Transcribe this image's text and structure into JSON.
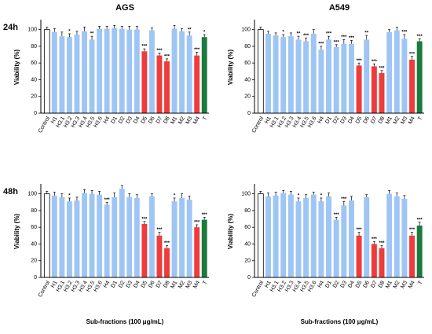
{
  "chart_data": [
    {
      "type": "bar",
      "title": "AGS",
      "panel_label": "24h",
      "ylabel": "Viability (%)",
      "categories": [
        "Control",
        "H1",
        "H3.1",
        "H3.2",
        "H3.3",
        "H3.4",
        "H3.5",
        "H3.6",
        "H4",
        "D1",
        "D2",
        "D3",
        "D4",
        "D5",
        "D6",
        "D7",
        "D8",
        "M1",
        "M2",
        "M3",
        "M4",
        "T"
      ],
      "values": [
        100,
        97,
        92,
        91,
        94,
        98,
        88,
        101,
        101,
        102,
        101,
        100,
        100,
        74,
        99,
        69,
        62,
        101,
        98,
        93,
        69,
        91
      ],
      "errors": [
        3,
        4,
        5,
        4,
        4,
        5,
        4,
        3,
        3,
        3,
        3,
        4,
        4,
        3,
        3,
        3,
        3,
        4,
        3,
        4,
        4,
        3
      ],
      "stars": [
        null,
        null,
        null,
        "*",
        null,
        null,
        "**",
        null,
        null,
        null,
        null,
        null,
        null,
        "***",
        null,
        "***",
        "***",
        null,
        null,
        "**",
        "***",
        "*"
      ],
      "colors": [
        "#ffffff",
        "#9ec5f4",
        "#9ec5f4",
        "#9ec5f4",
        "#9ec5f4",
        "#9ec5f4",
        "#9ec5f4",
        "#9ec5f4",
        "#9ec5f4",
        "#9ec5f4",
        "#9ec5f4",
        "#9ec5f4",
        "#9ec5f4",
        "#ee3b3b",
        "#9ec5f4",
        "#ee3b3b",
        "#ee3b3b",
        "#9ec5f4",
        "#9ec5f4",
        "#9ec5f4",
        "#ee3b3b",
        "#1b7a3e"
      ],
      "ylim": [
        0,
        110
      ],
      "yticks": [
        0,
        20,
        40,
        60,
        80,
        100
      ]
    },
    {
      "type": "bar",
      "title": "A549",
      "ylabel": "Viability (%)",
      "categories": [
        "Control",
        "H1",
        "H3.1",
        "H3.2",
        "H3.3",
        "H3.4",
        "H3.5",
        "H3.6",
        "H4",
        "D1",
        "D2",
        "D3",
        "D4",
        "D5",
        "D6",
        "D7",
        "D8",
        "M1",
        "M2",
        "M3",
        "M4",
        "T"
      ],
      "values": [
        100,
        95,
        93,
        91,
        92,
        88,
        86,
        95,
        76,
        88,
        79,
        83,
        83,
        57,
        88,
        56,
        48,
        97,
        99,
        89,
        64,
        86
      ],
      "errors": [
        3,
        3,
        3,
        3,
        4,
        4,
        4,
        5,
        4,
        4,
        3,
        5,
        4,
        3,
        5,
        3,
        3,
        3,
        4,
        5,
        4,
        3
      ],
      "stars": [
        null,
        null,
        null,
        "*",
        null,
        "**",
        "***",
        null,
        "***",
        "***",
        "***",
        "***",
        "***",
        "***",
        "**",
        "***",
        "***",
        null,
        null,
        "***",
        "***",
        "***"
      ],
      "colors": [
        "#ffffff",
        "#9ec5f4",
        "#9ec5f4",
        "#9ec5f4",
        "#9ec5f4",
        "#9ec5f4",
        "#9ec5f4",
        "#9ec5f4",
        "#9ec5f4",
        "#9ec5f4",
        "#9ec5f4",
        "#9ec5f4",
        "#9ec5f4",
        "#ee3b3b",
        "#9ec5f4",
        "#ee3b3b",
        "#ee3b3b",
        "#9ec5f4",
        "#9ec5f4",
        "#9ec5f4",
        "#ee3b3b",
        "#1b7a3e"
      ],
      "ylim": [
        0,
        110
      ],
      "yticks": [
        0,
        20,
        40,
        60,
        80,
        100
      ]
    },
    {
      "type": "bar",
      "panel_label": "48h",
      "ylabel": "Viability (%)",
      "xlabel": "Sub-fractions (100 μg/mL)",
      "categories": [
        "Control",
        "H1",
        "H3.1",
        "H3.2",
        "H3.3",
        "H3.4",
        "H3.5",
        "H3.6",
        "H4",
        "D1",
        "D2",
        "D3",
        "D4",
        "D5",
        "D6",
        "D7",
        "D8",
        "M1",
        "M2",
        "M3",
        "M4",
        "T"
      ],
      "values": [
        100,
        98,
        96,
        91,
        92,
        101,
        100,
        99,
        87,
        96,
        106,
        96,
        95,
        64,
        97,
        50,
        35,
        91,
        95,
        93,
        60,
        69
      ],
      "errors": [
        3,
        4,
        4,
        4,
        4,
        4,
        4,
        4,
        3,
        5,
        4,
        4,
        4,
        3,
        3,
        4,
        3,
        4,
        5,
        4,
        3,
        3
      ],
      "stars": [
        null,
        null,
        null,
        "*",
        null,
        null,
        null,
        null,
        "***",
        null,
        null,
        null,
        null,
        "***",
        null,
        "***",
        "***",
        "*",
        null,
        null,
        "***",
        "***"
      ],
      "colors": [
        "#ffffff",
        "#9ec5f4",
        "#9ec5f4",
        "#9ec5f4",
        "#9ec5f4",
        "#9ec5f4",
        "#9ec5f4",
        "#9ec5f4",
        "#9ec5f4",
        "#9ec5f4",
        "#9ec5f4",
        "#9ec5f4",
        "#9ec5f4",
        "#ee3b3b",
        "#9ec5f4",
        "#ee3b3b",
        "#ee3b3b",
        "#9ec5f4",
        "#9ec5f4",
        "#9ec5f4",
        "#ee3b3b",
        "#1b7a3e"
      ],
      "ylim": [
        0,
        110
      ],
      "yticks": [
        0,
        20,
        40,
        60,
        80,
        100
      ]
    },
    {
      "type": "bar",
      "ylabel": "Viability (%)",
      "xlabel": "Sub-fractions (100 μg/mL)",
      "categories": [
        "Control",
        "H1",
        "H3.1",
        "H3.2",
        "H3.3",
        "H3.4",
        "H3.5",
        "H3.6",
        "H4",
        "D1",
        "D2",
        "D3",
        "D4",
        "D5",
        "D6",
        "D7",
        "D8",
        "M1",
        "M2",
        "M3",
        "M4",
        "T"
      ],
      "values": [
        100,
        97,
        98,
        101,
        99,
        91,
        95,
        99,
        91,
        97,
        69,
        86,
        92,
        50,
        96,
        40,
        35,
        100,
        97,
        94,
        50,
        62
      ],
      "errors": [
        3,
        4,
        4,
        3,
        4,
        4,
        4,
        3,
        4,
        4,
        3,
        5,
        5,
        4,
        3,
        3,
        3,
        4,
        4,
        4,
        4,
        4
      ],
      "stars": [
        null,
        null,
        null,
        null,
        null,
        "*",
        null,
        null,
        "*",
        null,
        "***",
        "***",
        null,
        "***",
        null,
        "***",
        "***",
        null,
        null,
        null,
        "***",
        "***"
      ],
      "colors": [
        "#ffffff",
        "#9ec5f4",
        "#9ec5f4",
        "#9ec5f4",
        "#9ec5f4",
        "#9ec5f4",
        "#9ec5f4",
        "#9ec5f4",
        "#9ec5f4",
        "#9ec5f4",
        "#9ec5f4",
        "#9ec5f4",
        "#9ec5f4",
        "#ee3b3b",
        "#9ec5f4",
        "#ee3b3b",
        "#ee3b3b",
        "#9ec5f4",
        "#9ec5f4",
        "#9ec5f4",
        "#ee3b3b",
        "#1b7a3e"
      ],
      "ylim": [
        0,
        110
      ],
      "yticks": [
        0,
        20,
        40,
        60,
        80,
        100
      ]
    }
  ]
}
